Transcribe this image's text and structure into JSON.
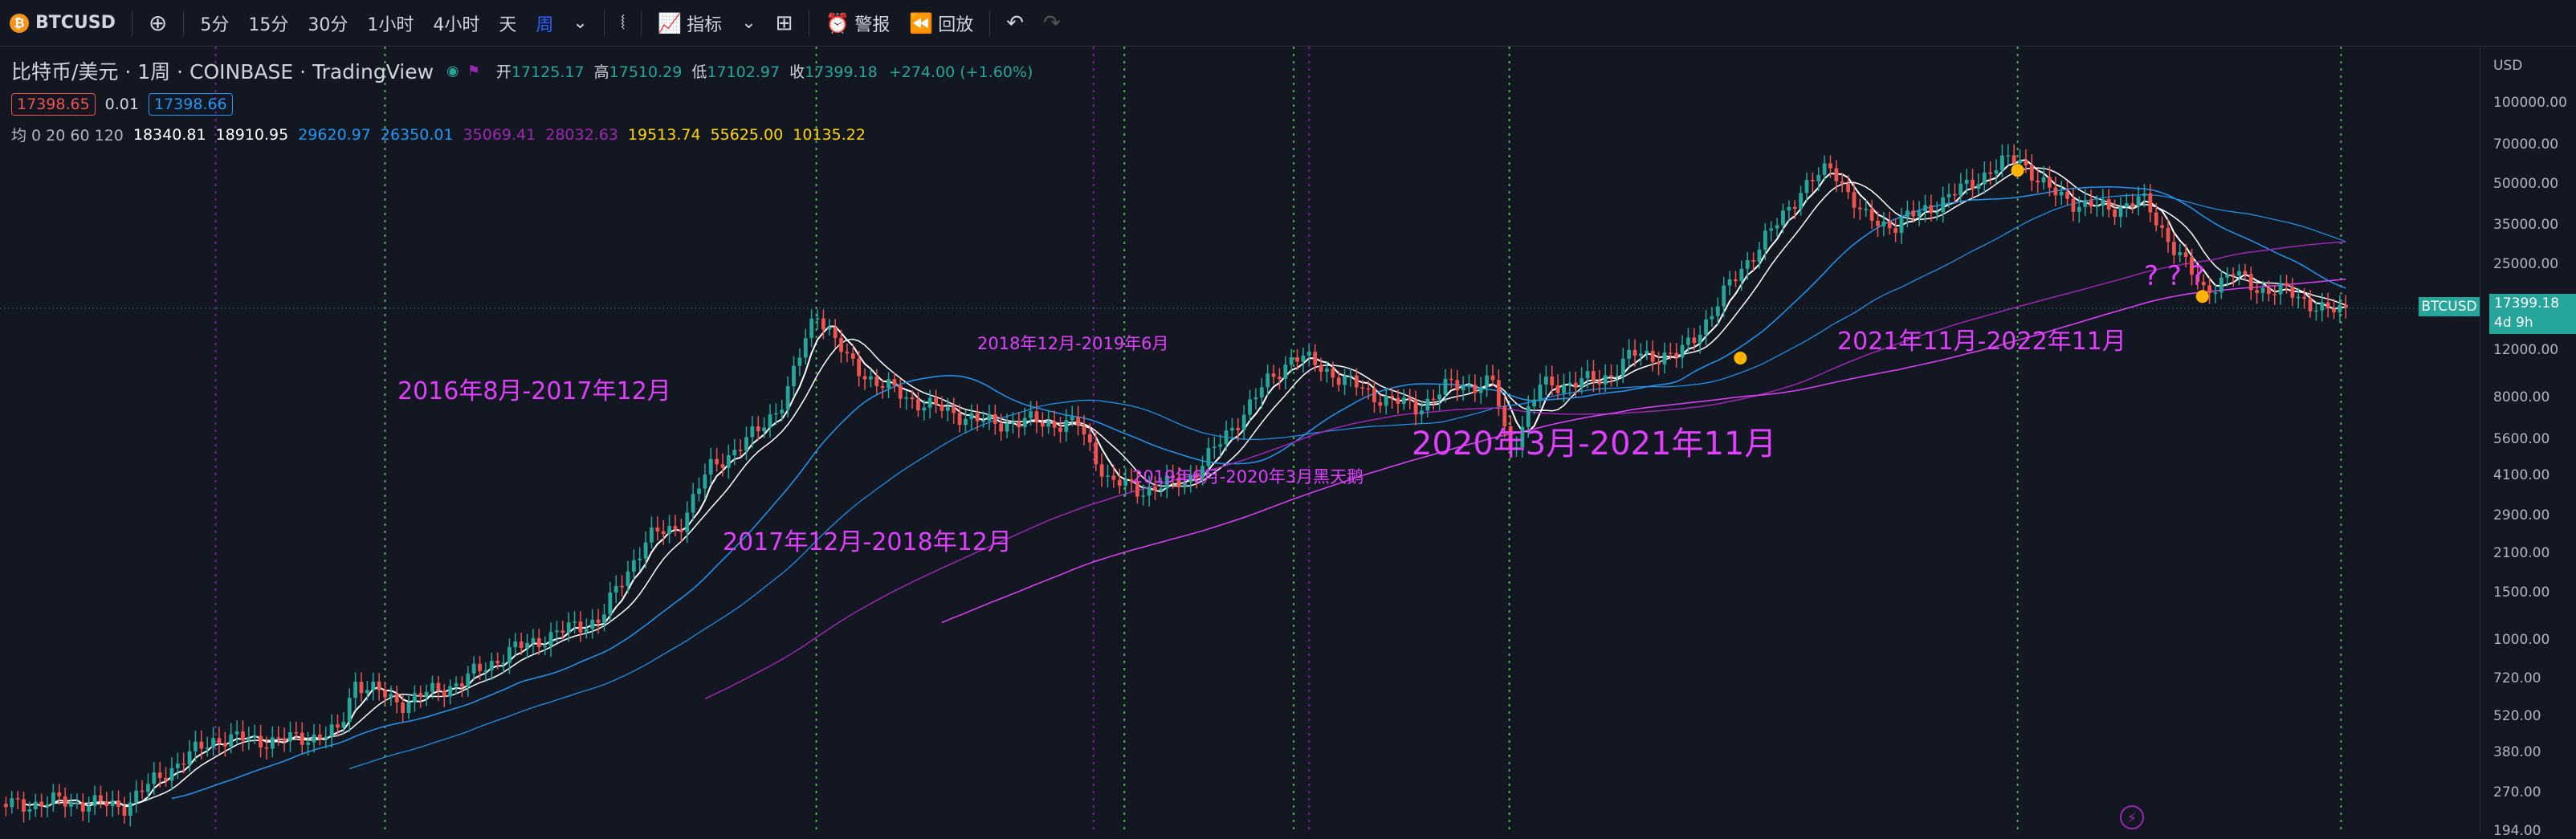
{
  "toolbar": {
    "symbol": "BTCUSD",
    "intervals": [
      "5分",
      "15分",
      "30分",
      "1小时",
      "4小时",
      "天",
      "周"
    ],
    "active_interval": "周",
    "indicators_label": "指标",
    "alert_label": "警报",
    "replay_label": "回放"
  },
  "legend": {
    "title": "比特币/美元 · 1周 · COINBASE · TradingView",
    "open_label": "开",
    "open": "17125.17",
    "high_label": "高",
    "high": "17510.29",
    "low_label": "低",
    "low": "17102.97",
    "close_label": "收",
    "close": "17399.18",
    "change": "+274.00 (+1.60%)",
    "bid": "17398.65",
    "spread": "0.01",
    "ask": "17398.66",
    "ma_label": "均 0 20 60 120",
    "ma_values": [
      "18340.81",
      "18910.95",
      "29620.97",
      "26350.01",
      "35069.41",
      "28032.63",
      "19513.74",
      "55625.00",
      "10135.22"
    ]
  },
  "axis": {
    "currency": "USD",
    "ticks": [
      "100000.00",
      "70000.00",
      "50000.00",
      "35000.00",
      "25000.00",
      "12000.00",
      "8000.00",
      "5600.00",
      "4100.00",
      "2900.00",
      "2100.00",
      "1500.00",
      "1000.00",
      "720.00",
      "520.00",
      "380.00",
      "270.00",
      "194.00"
    ],
    "last_symbol": "BTCUSD",
    "last_price": "17399.18",
    "last_countdown": "4d 9h"
  },
  "annotations": [
    {
      "text": "2016年8月-2017年12月",
      "color": "#e040fb"
    },
    {
      "text": "2017年12月-2018年12月",
      "color": "#e040fb"
    },
    {
      "text": "2018年12月-2019年6月",
      "color": "#e040fb"
    },
    {
      "text": "2019年6月-2020年3月黑天鹅",
      "color": "#e040fb"
    },
    {
      "text": "2020年3月-2021年11月",
      "color": "#e040fb"
    },
    {
      "text": "2021年11月-2022年11月",
      "color": "#e040fb"
    },
    {
      "text": "? ? ?",
      "color": "#e040fb"
    }
  ],
  "colors": {
    "up": "#26a69a",
    "down": "#ef5350",
    "ma_white": "#ffffff",
    "ma_blue": "#2196f3",
    "ma_purple": "#9c27b0",
    "ma_violet": "#e040fb",
    "vline": "#4caf50",
    "marker": "#ffb300",
    "background": "#131722"
  },
  "chart_data": {
    "type": "line",
    "title": "",
    "scale": "log",
    "ylim": [
      194,
      100000
    ],
    "series": [
      {
        "name": "",
        "points": [
          [
            2015.3,
            240
          ],
          [
            2015.5,
            250
          ],
          [
            2015.7,
            240
          ],
          [
            2015.85,
            330
          ],
          [
            2016.0,
            430
          ],
          [
            2016.2,
            420
          ],
          [
            2016.4,
            450
          ],
          [
            2016.45,
            700
          ],
          [
            2016.6,
            580
          ],
          [
            2016.8,
            700
          ],
          [
            2016.95,
            900
          ],
          [
            2017.1,
            1050
          ],
          [
            2017.25,
            1200
          ],
          [
            2017.4,
            2400
          ],
          [
            2017.5,
            2600
          ],
          [
            2017.6,
            4300
          ],
          [
            2017.75,
            5800
          ],
          [
            2017.85,
            8000
          ],
          [
            2017.95,
            17000
          ],
          [
            2018.05,
            11000
          ],
          [
            2018.15,
            9000
          ],
          [
            2018.3,
            7500
          ],
          [
            2018.4,
            7000
          ],
          [
            2018.5,
            6400
          ],
          [
            2018.65,
            6500
          ],
          [
            2018.8,
            6300
          ],
          [
            2018.9,
            3900
          ],
          [
            2019.0,
            3600
          ],
          [
            2019.15,
            3900
          ],
          [
            2019.25,
            5200
          ],
          [
            2019.4,
            8700
          ],
          [
            2019.5,
            11500
          ],
          [
            2019.6,
            10200
          ],
          [
            2019.75,
            8200
          ],
          [
            2019.9,
            7300
          ],
          [
            2020.0,
            8800
          ],
          [
            2020.15,
            9000
          ],
          [
            2020.2,
            5000
          ],
          [
            2020.3,
            8800
          ],
          [
            2020.5,
            9300
          ],
          [
            2020.6,
            11500
          ],
          [
            2020.75,
            11400
          ],
          [
            2020.85,
            16000
          ],
          [
            2020.95,
            24000
          ],
          [
            2021.05,
            33000
          ],
          [
            2021.15,
            48000
          ],
          [
            2021.25,
            58000
          ],
          [
            2021.35,
            37000
          ],
          [
            2021.45,
            35000
          ],
          [
            2021.55,
            40000
          ],
          [
            2021.65,
            46000
          ],
          [
            2021.75,
            55000
          ],
          [
            2021.85,
            63000
          ],
          [
            2021.95,
            47000
          ],
          [
            2022.05,
            42000
          ],
          [
            2022.15,
            40000
          ],
          [
            2022.25,
            44000
          ],
          [
            2022.35,
            30000
          ],
          [
            2022.45,
            20000
          ],
          [
            2022.55,
            23000
          ],
          [
            2022.65,
            20000
          ],
          [
            2022.75,
            19500
          ],
          [
            2022.85,
            16500
          ],
          [
            2022.93,
            17399
          ]
        ]
      }
    ],
    "markers_years": [
      2021.85,
      2022.45
    ],
    "cycle_lines_years": [
      2016.55,
      2017.95,
      2018.95,
      2019.5,
      2020.2,
      2021.85,
      2022.9
    ]
  }
}
